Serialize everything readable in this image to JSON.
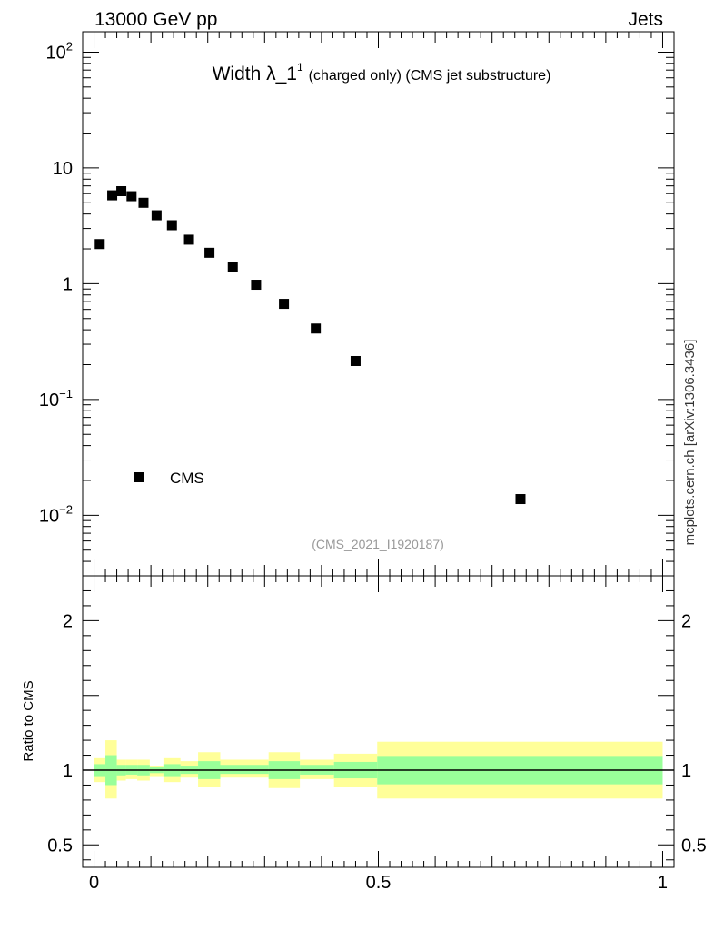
{
  "header": {
    "left_label": "13000 GeV pp",
    "right_label": "Jets",
    "side_label": "mcplots.cern.ch [arXiv:1306.3436]"
  },
  "colors": {
    "band_outer": "#ffff99",
    "band_inner": "#99ff99",
    "marker": "#000000",
    "watermark": "#999999"
  },
  "chart_data": [
    {
      "type": "scatter",
      "panel": "main",
      "title_main": "Width λ_1",
      "title_sup": "1",
      "title_rest": "(charged only) (CMS jet substructure)",
      "analysis_tag": "(CMS_2021_I1920187)",
      "yscale": "log",
      "xlim": [
        -0.02,
        1.02
      ],
      "ylim": [
        0.003,
        150
      ],
      "y_tick_labels": [
        {
          "value": 100,
          "base": "10",
          "exp": "2"
        },
        {
          "value": 10,
          "base": "10",
          "exp": ""
        },
        {
          "value": 1,
          "base": "1",
          "exp": ""
        },
        {
          "value": 0.1,
          "base": "10",
          "exp": "−1"
        },
        {
          "value": 0.01,
          "base": "10",
          "exp": "−2"
        }
      ],
      "legend": {
        "label": "CMS",
        "position": "bottom-left"
      },
      "series": [
        {
          "name": "CMS",
          "x": [
            0.01,
            0.032,
            0.048,
            0.066,
            0.087,
            0.11,
            0.137,
            0.167,
            0.203,
            0.244,
            0.285,
            0.334,
            0.39,
            0.46,
            0.75
          ],
          "y": [
            2.2,
            5.8,
            6.3,
            5.7,
            5.0,
            3.9,
            3.2,
            2.4,
            1.85,
            1.4,
            0.98,
            0.67,
            0.41,
            0.215,
            0.0138
          ]
        }
      ]
    },
    {
      "type": "area",
      "panel": "ratio",
      "ylabel": "Ratio to CMS",
      "xlim": [
        -0.02,
        1.02
      ],
      "ylim": [
        0.35,
        2.3
      ],
      "x_tick_labels": [
        {
          "value": 0,
          "label": "0"
        },
        {
          "value": 0.5,
          "label": "0.5"
        },
        {
          "value": 1,
          "label": "1"
        }
      ],
      "y_tick_labels": [
        {
          "value": 2,
          "label": "2"
        },
        {
          "value": 1,
          "label": "1"
        },
        {
          "value": 0.5,
          "label": "0.5"
        }
      ],
      "reference_line": 1,
      "bins": [
        {
          "x0": 0.0,
          "x1": 0.02,
          "outer": [
            0.92,
            1.08
          ],
          "inner": [
            0.96,
            1.04
          ]
        },
        {
          "x0": 0.02,
          "x1": 0.04,
          "outer": [
            0.81,
            1.2
          ],
          "inner": [
            0.9,
            1.1
          ]
        },
        {
          "x0": 0.04,
          "x1": 0.056,
          "outer": [
            0.93,
            1.07
          ],
          "inner": [
            0.965,
            1.035
          ]
        },
        {
          "x0": 0.056,
          "x1": 0.076,
          "outer": [
            0.94,
            1.07
          ],
          "inner": [
            0.97,
            1.035
          ]
        },
        {
          "x0": 0.076,
          "x1": 0.098,
          "outer": [
            0.93,
            1.07
          ],
          "inner": [
            0.965,
            1.035
          ]
        },
        {
          "x0": 0.098,
          "x1": 0.122,
          "outer": [
            0.96,
            1.03
          ],
          "inner": [
            0.98,
            1.018
          ]
        },
        {
          "x0": 0.122,
          "x1": 0.152,
          "outer": [
            0.92,
            1.08
          ],
          "inner": [
            0.96,
            1.04
          ]
        },
        {
          "x0": 0.152,
          "x1": 0.183,
          "outer": [
            0.95,
            1.06
          ],
          "inner": [
            0.975,
            1.03
          ]
        },
        {
          "x0": 0.183,
          "x1": 0.222,
          "outer": [
            0.89,
            1.12
          ],
          "inner": [
            0.94,
            1.06
          ]
        },
        {
          "x0": 0.222,
          "x1": 0.262,
          "outer": [
            0.95,
            1.07
          ],
          "inner": [
            0.975,
            1.035
          ]
        },
        {
          "x0": 0.262,
          "x1": 0.307,
          "outer": [
            0.95,
            1.07
          ],
          "inner": [
            0.975,
            1.035
          ]
        },
        {
          "x0": 0.307,
          "x1": 0.362,
          "outer": [
            0.88,
            1.12
          ],
          "inner": [
            0.94,
            1.06
          ]
        },
        {
          "x0": 0.362,
          "x1": 0.422,
          "outer": [
            0.94,
            1.07
          ],
          "inner": [
            0.97,
            1.035
          ]
        },
        {
          "x0": 0.422,
          "x1": 0.498,
          "outer": [
            0.89,
            1.11
          ],
          "inner": [
            0.945,
            1.055
          ]
        },
        {
          "x0": 0.498,
          "x1": 1.0,
          "outer": [
            0.81,
            1.19
          ],
          "inner": [
            0.905,
            1.095
          ]
        }
      ]
    }
  ]
}
